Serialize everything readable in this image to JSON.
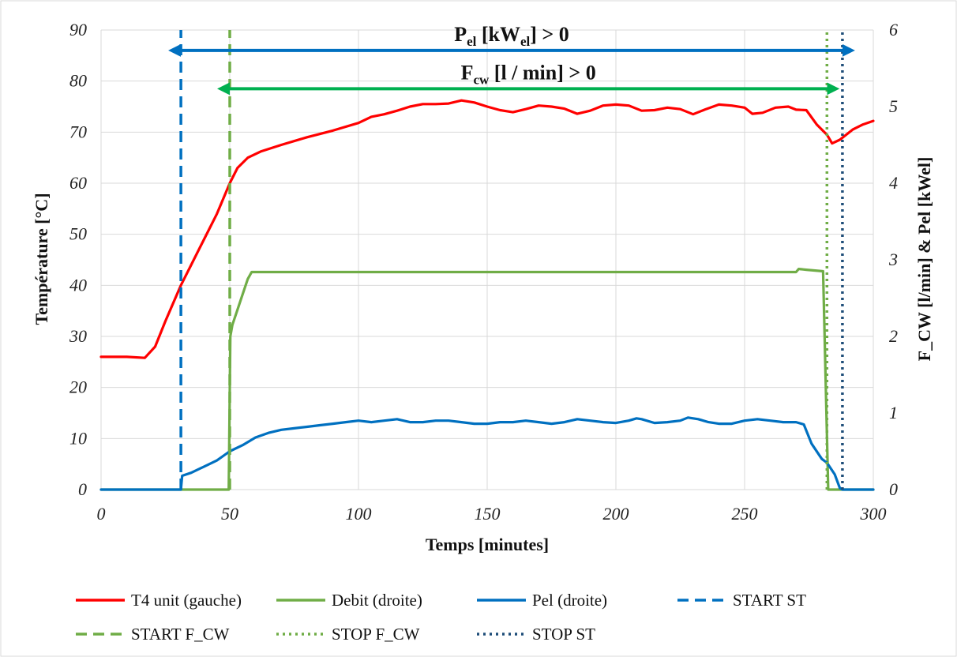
{
  "chart_data": {
    "type": "line",
    "title": "",
    "xlabel": "Temps [minutes]",
    "ylabel_left": "Température [°C]",
    "ylabel_right": "F_CW [l/min] & Pel [kWel]",
    "xlim": [
      0,
      300
    ],
    "ylim_left": [
      0,
      90
    ],
    "ylim_right": [
      0,
      6
    ],
    "x_ticks": [
      0,
      50,
      100,
      150,
      200,
      250,
      300
    ],
    "y_left_ticks": [
      0,
      10,
      20,
      30,
      40,
      50,
      60,
      70,
      80,
      90
    ],
    "y_right_ticks": [
      0,
      1,
      2,
      3,
      4,
      5,
      6
    ],
    "grid": true,
    "legend_position": "bottom",
    "colors": {
      "t4": "#ff0000",
      "debit": "#70ad47",
      "pel": "#0070c0",
      "start_st": "#0070c0",
      "start_fcw": "#70ad47",
      "stop_fcw": "#70ad47",
      "stop_st": "#1f4e79",
      "arrow_pel": "#0070c0",
      "arrow_fcw": "#00b050",
      "grid": "#d9d9d9"
    },
    "series": [
      {
        "name": "T4 unit (gauche)",
        "axis": "left",
        "color": "#ff0000",
        "style": "solid",
        "points": [
          [
            0,
            26
          ],
          [
            10,
            26
          ],
          [
            17,
            25.8
          ],
          [
            21,
            28
          ],
          [
            25,
            33
          ],
          [
            31,
            40
          ],
          [
            35,
            44
          ],
          [
            40,
            49
          ],
          [
            45,
            54
          ],
          [
            50,
            60
          ],
          [
            53,
            63
          ],
          [
            57,
            65
          ],
          [
            62,
            66.2
          ],
          [
            70,
            67.5
          ],
          [
            80,
            69
          ],
          [
            90,
            70.3
          ],
          [
            100,
            71.8
          ],
          [
            105,
            73
          ],
          [
            110,
            73.5
          ],
          [
            115,
            74.2
          ],
          [
            120,
            75
          ],
          [
            125,
            75.5
          ],
          [
            130,
            75.5
          ],
          [
            135,
            75.6
          ],
          [
            140,
            76.2
          ],
          [
            145,
            75.8
          ],
          [
            150,
            75
          ],
          [
            155,
            74.3
          ],
          [
            160,
            73.9
          ],
          [
            165,
            74.5
          ],
          [
            170,
            75.2
          ],
          [
            175,
            75
          ],
          [
            180,
            74.6
          ],
          [
            185,
            73.6
          ],
          [
            190,
            74.2
          ],
          [
            195,
            75.2
          ],
          [
            200,
            75.4
          ],
          [
            205,
            75.2
          ],
          [
            210,
            74.2
          ],
          [
            215,
            74.3
          ],
          [
            220,
            74.8
          ],
          [
            225,
            74.5
          ],
          [
            230,
            73.5
          ],
          [
            235,
            74.5
          ],
          [
            240,
            75.4
          ],
          [
            245,
            75.2
          ],
          [
            250,
            74.8
          ],
          [
            253,
            73.6
          ],
          [
            257,
            73.8
          ],
          [
            262,
            74.8
          ],
          [
            267,
            75
          ],
          [
            270,
            74.4
          ],
          [
            274,
            74.3
          ],
          [
            278,
            71.5
          ],
          [
            282,
            69.5
          ],
          [
            284,
            67.8
          ],
          [
            287,
            68.5
          ],
          [
            292,
            70.5
          ],
          [
            296,
            71.5
          ],
          [
            300,
            72.2
          ]
        ]
      },
      {
        "name": "Debit (droite)",
        "axis": "right",
        "color": "#70ad47",
        "style": "solid",
        "points": [
          [
            0,
            0
          ],
          [
            49.6,
            0
          ],
          [
            50.2,
            2.0
          ],
          [
            51,
            2.15
          ],
          [
            53,
            2.35
          ],
          [
            55,
            2.55
          ],
          [
            57,
            2.75
          ],
          [
            58.5,
            2.84
          ],
          [
            270,
            2.84
          ],
          [
            271,
            2.88
          ],
          [
            274,
            2.87
          ],
          [
            280.5,
            2.85
          ],
          [
            282.5,
            0
          ],
          [
            300,
            0
          ]
        ]
      },
      {
        "name": "Pel (droite)",
        "axis": "right",
        "color": "#0070c0",
        "style": "solid",
        "points": [
          [
            0,
            0
          ],
          [
            31,
            0
          ],
          [
            31.5,
            0.18
          ],
          [
            35,
            0.22
          ],
          [
            40,
            0.3
          ],
          [
            45,
            0.38
          ],
          [
            50,
            0.5
          ],
          [
            55,
            0.58
          ],
          [
            60,
            0.68
          ],
          [
            65,
            0.74
          ],
          [
            70,
            0.78
          ],
          [
            75,
            0.8
          ],
          [
            80,
            0.82
          ],
          [
            85,
            0.84
          ],
          [
            90,
            0.86
          ],
          [
            95,
            0.88
          ],
          [
            100,
            0.9
          ],
          [
            105,
            0.88
          ],
          [
            110,
            0.9
          ],
          [
            115,
            0.92
          ],
          [
            120,
            0.88
          ],
          [
            125,
            0.88
          ],
          [
            130,
            0.9
          ],
          [
            135,
            0.9
          ],
          [
            140,
            0.88
          ],
          [
            145,
            0.86
          ],
          [
            150,
            0.86
          ],
          [
            155,
            0.88
          ],
          [
            160,
            0.88
          ],
          [
            165,
            0.9
          ],
          [
            170,
            0.88
          ],
          [
            175,
            0.86
          ],
          [
            180,
            0.88
          ],
          [
            185,
            0.92
          ],
          [
            190,
            0.9
          ],
          [
            195,
            0.88
          ],
          [
            200,
            0.87
          ],
          [
            205,
            0.9
          ],
          [
            208,
            0.93
          ],
          [
            210,
            0.92
          ],
          [
            215,
            0.87
          ],
          [
            220,
            0.88
          ],
          [
            225,
            0.9
          ],
          [
            228,
            0.94
          ],
          [
            232,
            0.92
          ],
          [
            236,
            0.88
          ],
          [
            240,
            0.86
          ],
          [
            245,
            0.86
          ],
          [
            250,
            0.9
          ],
          [
            255,
            0.92
          ],
          [
            260,
            0.9
          ],
          [
            265,
            0.88
          ],
          [
            270,
            0.88
          ],
          [
            273,
            0.85
          ],
          [
            276,
            0.6
          ],
          [
            280,
            0.4
          ],
          [
            282,
            0.35
          ],
          [
            285,
            0.2
          ],
          [
            287,
            0.02
          ],
          [
            288,
            0
          ],
          [
            300,
            0
          ]
        ]
      },
      {
        "name": "START ST",
        "axis": "left",
        "color": "#0070c0",
        "style": "dashed",
        "points": [
          [
            31,
            0
          ],
          [
            31,
            90
          ]
        ]
      },
      {
        "name": "START F_CW",
        "axis": "left",
        "color": "#70ad47",
        "style": "dashed",
        "points": [
          [
            50,
            0
          ],
          [
            50,
            90
          ]
        ]
      },
      {
        "name": "STOP F_CW",
        "axis": "left",
        "color": "#70ad47",
        "style": "dotted",
        "points": [
          [
            282,
            0
          ],
          [
            282,
            90
          ]
        ]
      },
      {
        "name": "STOP ST",
        "axis": "left",
        "color": "#1f4e79",
        "style": "dotted",
        "points": [
          [
            288,
            0
          ],
          [
            288,
            90
          ]
        ]
      }
    ],
    "annotations": [
      {
        "id": "pel-arrow",
        "label_main": "P",
        "label_sub": "el",
        "label_rest1": " [kW",
        "label_sub2": "el",
        "label_rest2": "] > 0",
        "x_start": 31,
        "x_end": 288,
        "y": 86,
        "color": "#0070c0"
      },
      {
        "id": "fcw-arrow",
        "label_main": "F",
        "label_sub": "cw",
        "label_rest1": "  [l / min] > 0",
        "label_sub2": "",
        "label_rest2": "",
        "x_start": 50,
        "x_end": 282,
        "y": 78.5,
        "color": "#00b050"
      }
    ]
  }
}
